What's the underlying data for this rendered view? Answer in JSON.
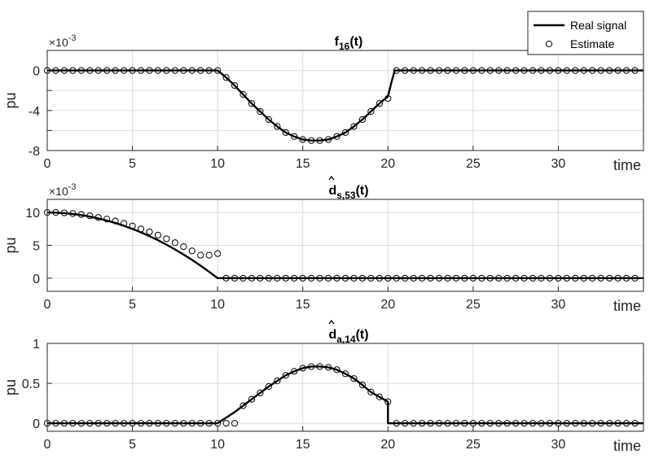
{
  "chart_data": [
    {
      "type": "line",
      "title": "f",
      "title_sub": "16",
      "title_suffix": "(t)",
      "title_hat": false,
      "xlabel": "time",
      "ylabel": "pu",
      "exponent_prefix": "×10",
      "exponent": "-3",
      "xlim": [
        0,
        35
      ],
      "ylim": [
        -8,
        2
      ],
      "xticks": [
        0,
        5,
        10,
        15,
        20,
        25,
        30
      ],
      "yticks": [
        0,
        -4,
        -8
      ],
      "yticks_unlabeled": [
        -2,
        -6
      ],
      "ytick_labels": [
        "0",
        "-4",
        "-8"
      ],
      "grid": true,
      "series": [
        {
          "name": "Real signal",
          "kind": "line",
          "color": "#000000",
          "x": [
            0,
            10,
            10.5,
            11,
            11.5,
            12,
            12.5,
            13,
            13.5,
            14,
            14.5,
            15,
            15.5,
            16,
            16.5,
            17,
            17.5,
            18,
            18.5,
            19,
            19.5,
            20,
            20.2,
            20.4,
            21,
            35
          ],
          "y": [
            0,
            0,
            -0.7,
            -1.5,
            -2.4,
            -3.3,
            -4.1,
            -4.9,
            -5.6,
            -6.2,
            -6.6,
            -6.9,
            -7.0,
            -7.0,
            -6.9,
            -6.6,
            -6.2,
            -5.6,
            -4.9,
            -4.1,
            -3.3,
            -2.6,
            -1.2,
            0,
            0,
            0
          ]
        },
        {
          "name": "Estimate",
          "kind": "marker",
          "color": "#000000",
          "x": [
            0,
            0.5,
            1,
            1.5,
            2,
            2.5,
            3,
            3.5,
            4,
            4.5,
            5,
            5.5,
            6,
            6.5,
            7,
            7.5,
            8,
            8.5,
            9,
            9.5,
            10,
            10.5,
            11,
            11.5,
            12,
            12.5,
            13,
            13.5,
            14,
            14.5,
            15,
            15.5,
            16,
            16.5,
            17,
            17.5,
            18,
            18.5,
            19,
            19.5,
            20,
            20.5,
            21,
            21.5,
            22,
            22.5,
            23,
            23.5,
            24,
            24.5,
            25,
            25.5,
            26,
            26.5,
            27,
            27.5,
            28,
            28.5,
            29,
            29.5,
            30,
            30.5,
            31,
            31.5,
            32,
            32.5,
            33,
            33.5,
            34,
            34.5
          ],
          "y": [
            0,
            0,
            0,
            0,
            0,
            0,
            0,
            0,
            0,
            0,
            0,
            0,
            0,
            0,
            0,
            0,
            0,
            0,
            0,
            0,
            0,
            -0.7,
            -1.5,
            -2.4,
            -3.3,
            -4.1,
            -4.9,
            -5.6,
            -6.2,
            -6.6,
            -6.9,
            -7.0,
            -7.0,
            -6.9,
            -6.6,
            -6.2,
            -5.6,
            -4.9,
            -4.1,
            -3.3,
            -2.8,
            0,
            0,
            0,
            0,
            0,
            0,
            0,
            0,
            0,
            0,
            0,
            0,
            0,
            0,
            0,
            0,
            0,
            0,
            0,
            0,
            0,
            0,
            0,
            0,
            0,
            0,
            0,
            0,
            0
          ]
        }
      ]
    },
    {
      "type": "line",
      "title": "d",
      "title_sub": "s,53",
      "title_suffix": "(t)",
      "title_hat": true,
      "xlabel": "time",
      "ylabel": "pu",
      "exponent_prefix": "×10",
      "exponent": "-3",
      "xlim": [
        0,
        35
      ],
      "ylim": [
        -2,
        12
      ],
      "xticks": [
        0,
        5,
        10,
        15,
        20,
        25,
        30
      ],
      "yticks": [
        0,
        5,
        10
      ],
      "yticks_unlabeled": [],
      "ytick_labels": [
        "0",
        "5",
        "10"
      ],
      "grid": true,
      "series": [
        {
          "name": "Real signal",
          "kind": "line",
          "color": "#000000",
          "x": [
            0,
            0.5,
            1,
            1.5,
            2,
            2.5,
            3,
            3.5,
            4,
            4.5,
            5,
            5.5,
            6,
            6.5,
            7,
            7.5,
            8,
            8.5,
            9,
            9.5,
            10,
            10,
            35
          ],
          "y": [
            10,
            9.98,
            9.9,
            9.78,
            9.6,
            9.38,
            9.1,
            8.78,
            8.4,
            7.98,
            7.5,
            6.98,
            6.4,
            5.78,
            5.1,
            4.38,
            3.6,
            2.78,
            1.9,
            0.98,
            0,
            0,
            0
          ]
        },
        {
          "name": "Estimate",
          "kind": "marker",
          "color": "#000000",
          "x": [
            0,
            0.5,
            1,
            1.5,
            2,
            2.5,
            3,
            3.5,
            4,
            4.5,
            5,
            5.5,
            6,
            6.5,
            7,
            7.5,
            8,
            8.5,
            9,
            9.5,
            10,
            10.5,
            11,
            11.5,
            12,
            12.5,
            13,
            13.5,
            14,
            14.5,
            15,
            15.5,
            16,
            16.5,
            17,
            17.5,
            18,
            18.5,
            19,
            19.5,
            20,
            20.5,
            21,
            21.5,
            22,
            22.5,
            23,
            23.5,
            24,
            24.5,
            25,
            25.5,
            26,
            26.5,
            27,
            27.5,
            28,
            28.5,
            29,
            29.5,
            30,
            30.5,
            31,
            31.5,
            32,
            32.5,
            33,
            33.5,
            34,
            34.5
          ],
          "y": [
            10,
            10,
            9.95,
            9.85,
            9.7,
            9.5,
            9.25,
            9.0,
            8.7,
            8.35,
            7.95,
            7.5,
            7.05,
            6.55,
            6.0,
            5.4,
            4.8,
            4.15,
            3.5,
            3.5,
            3.75,
            0,
            0,
            0,
            0,
            0,
            0,
            0,
            0,
            0,
            0,
            0,
            0,
            0,
            0,
            0,
            0,
            0,
            0,
            0,
            0,
            0,
            0,
            0,
            0,
            0,
            0,
            0,
            0,
            0,
            0,
            0,
            0,
            0,
            0,
            0,
            0,
            0,
            0,
            0,
            0,
            0,
            0,
            0,
            0,
            0,
            0,
            0,
            0,
            0
          ]
        }
      ]
    },
    {
      "type": "line",
      "title": "d",
      "title_sub": "a,14",
      "title_suffix": "(t)",
      "title_hat": true,
      "xlabel": "time",
      "ylabel": "pu",
      "exponent_prefix": "",
      "exponent": "",
      "xlim": [
        0,
        35
      ],
      "ylim": [
        -0.1,
        1
      ],
      "xticks": [
        0,
        5,
        10,
        15,
        20,
        25,
        30
      ],
      "yticks": [
        0,
        0.5,
        1
      ],
      "yticks_unlabeled": [],
      "ytick_labels": [
        "0",
        "0.5",
        "1"
      ],
      "grid": true,
      "series": [
        {
          "name": "Real signal",
          "kind": "line",
          "color": "#000000",
          "x": [
            0,
            10,
            11,
            12,
            12.5,
            13,
            13.5,
            14,
            14.5,
            15,
            15.5,
            16,
            16.5,
            17,
            17.5,
            18,
            18.5,
            19,
            19.5,
            20,
            20,
            35
          ],
          "y": [
            0,
            0,
            0.14,
            0.3,
            0.38,
            0.46,
            0.53,
            0.6,
            0.65,
            0.69,
            0.71,
            0.71,
            0.7,
            0.67,
            0.62,
            0.56,
            0.48,
            0.39,
            0.33,
            0.27,
            0,
            0
          ]
        },
        {
          "name": "Estimate",
          "kind": "marker",
          "color": "#000000",
          "x": [
            0,
            0.5,
            1,
            1.5,
            2,
            2.5,
            3,
            3.5,
            4,
            4.5,
            5,
            5.5,
            6,
            6.5,
            7,
            7.5,
            8,
            8.5,
            9,
            9.5,
            10,
            10.5,
            11,
            11.5,
            12,
            12.5,
            13,
            13.5,
            14,
            14.5,
            15,
            15.5,
            16,
            16.5,
            17,
            17.5,
            18,
            18.5,
            19,
            19.5,
            20,
            20.5,
            21,
            21.5,
            22,
            22.5,
            23,
            23.5,
            24,
            24.5,
            25,
            25.5,
            26,
            26.5,
            27,
            27.5,
            28,
            28.5,
            29,
            29.5,
            30,
            30.5,
            31,
            31.5,
            32,
            32.5,
            33,
            33.5,
            34,
            34.5
          ],
          "y": [
            0,
            0,
            0,
            0,
            0,
            0,
            0,
            0,
            0,
            0,
            0,
            0,
            0,
            0,
            0,
            0,
            0,
            0,
            0,
            0,
            0,
            0,
            0,
            0.22,
            0.3,
            0.38,
            0.46,
            0.53,
            0.6,
            0.65,
            0.69,
            0.71,
            0.71,
            0.7,
            0.67,
            0.62,
            0.56,
            0.48,
            0.39,
            0.33,
            0.27,
            0,
            0,
            0,
            0,
            0,
            0,
            0,
            0,
            0,
            0,
            0,
            0,
            0,
            0,
            0,
            0,
            0,
            0,
            0,
            0,
            0,
            0,
            0,
            0,
            0,
            0,
            0,
            0,
            0
          ]
        }
      ]
    }
  ],
  "legend": {
    "placement": "top-right",
    "entries": [
      {
        "label": "Real signal",
        "symbol": "line"
      },
      {
        "label": "Estimate",
        "symbol": "circle"
      }
    ]
  }
}
